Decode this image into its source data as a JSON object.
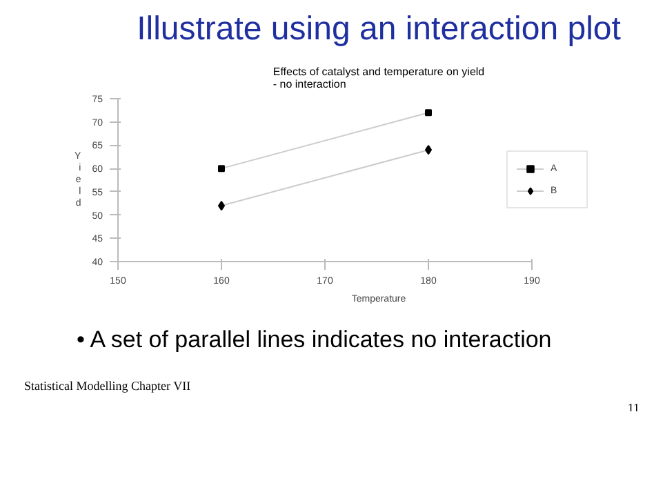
{
  "chart_data": {
    "type": "line",
    "title": "Illustrate using an interaction plot",
    "subtitle": "Effects of catalyst and temperature on yield\n- no interaction",
    "xlabel": "Temperature",
    "ylabel": "Yield",
    "x": [
      160,
      180
    ],
    "series": [
      {
        "name": "A",
        "color": "#000000",
        "values": [
          60,
          72
        ],
        "marker": "square"
      },
      {
        "name": "B",
        "color": "#000000",
        "values": [
          52,
          64
        ],
        "marker": "diamond"
      }
    ],
    "xlim": [
      150,
      190
    ],
    "xticks": [
      150,
      160,
      170,
      180,
      190
    ],
    "ylim": [
      40,
      75
    ],
    "yticks": [
      40,
      45,
      50,
      55,
      60,
      65,
      70,
      75
    ],
    "grid": false,
    "legend": "right",
    "line_style": "solid",
    "annotations": [
      "• A set of parallel lines indicates no interaction",
      "Statistical Modelling   Chapter VII",
      "11"
    ]
  }
}
